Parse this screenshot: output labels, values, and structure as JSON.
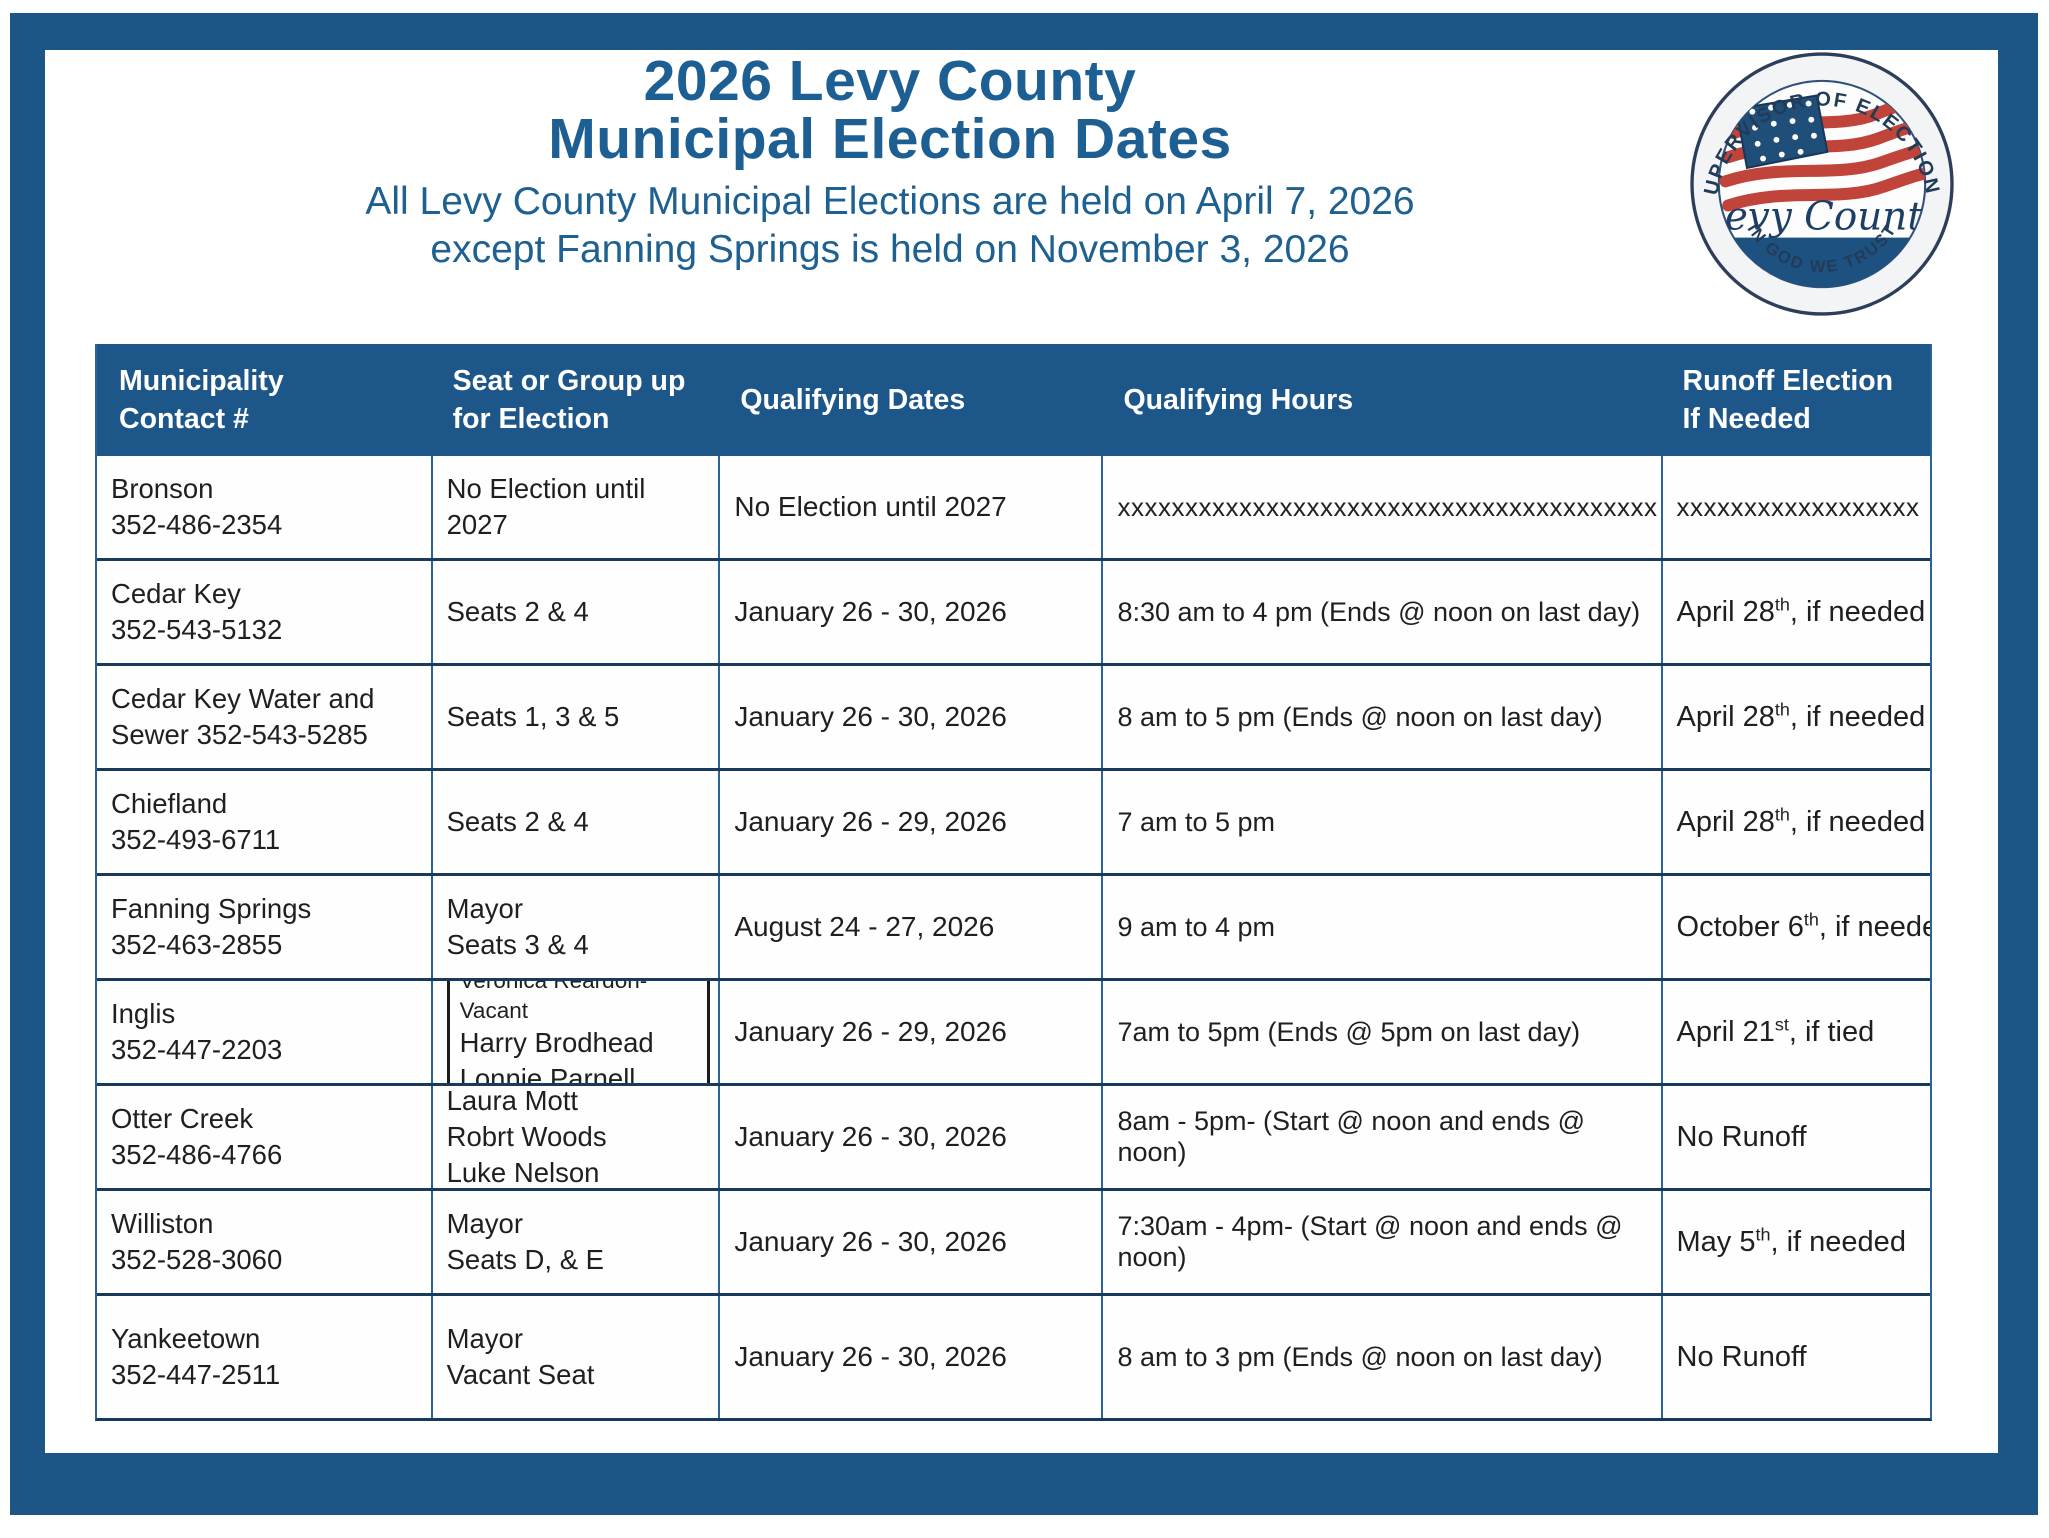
{
  "page": {
    "title_line1": "2026 Levy County",
    "title_line2": "Municipal Election Dates",
    "subtitle_line1": "All Levy County Municipal Elections are held on April 7, 2026",
    "subtitle_line2": "except Fanning Springs is held on November 3, 2026"
  },
  "seal": {
    "top_text": "SUPERVISOR OF ELECTIONS",
    "bottom_text": "IN GOD WE TRUST",
    "center_text": "Levy County",
    "colors": {
      "navy": "#1d4a74",
      "red": "#c0443a",
      "ring_text": "#223c58"
    }
  },
  "colors": {
    "frame_blue": "#1c5687",
    "header_blue": "#1d5689",
    "title_blue": "#1d5f93",
    "row_separator": "#1a3a5c",
    "cell_border": "#2a6496"
  },
  "table": {
    "headers": [
      {
        "lines": [
          "Municipality",
          "Contact #"
        ]
      },
      {
        "lines": [
          "Seat or Group up",
          "for Election"
        ]
      },
      {
        "lines": [
          "Qualifying Dates"
        ]
      },
      {
        "lines": [
          "Qualifying Hours"
        ]
      },
      {
        "lines": [
          "Runoff Election",
          "If Needed"
        ]
      }
    ],
    "rows": [
      {
        "municipality": [
          "Bronson",
          "352-486-2354"
        ],
        "seat": [
          "No Election until 2027"
        ],
        "dates": "No Election until 2027",
        "hours": "xxxxxxxxxxxxxxxxxxxxxxxxxxxxxxxxxxxxxxxx",
        "runoff": {
          "text": "xxxxxxxxxxxxxxxxxx"
        },
        "xstring": true
      },
      {
        "municipality": [
          "Cedar Key",
          "352-543-5132"
        ],
        "seat": [
          "Seats 2 & 4"
        ],
        "dates": "January 26 - 30, 2026",
        "hours": "8:30 am to 4 pm (Ends @ noon on last day)",
        "runoff": {
          "text": "April 28",
          "sup": "th",
          "tail": ", if needed"
        }
      },
      {
        "municipality": [
          "Cedar Key Water and",
          "Sewer 352-543-5285"
        ],
        "seat": [
          "Seats 1, 3 & 5"
        ],
        "dates": "January 26 - 30, 2026",
        "hours": "8 am to 5 pm (Ends @ noon on last day)",
        "runoff": {
          "text": "April 28",
          "sup": "th",
          "tail": ", if needed"
        }
      },
      {
        "municipality": [
          "Chiefland",
          "352-493-6711"
        ],
        "seat": [
          "Seats 2 & 4"
        ],
        "dates": "January 26 - 29, 2026",
        "hours": "7 am to 5 pm",
        "runoff": {
          "text": "April 28",
          "sup": "th",
          "tail": ", if needed"
        }
      },
      {
        "municipality": [
          "Fanning Springs",
          "352-463-2855"
        ],
        "seat": [
          "Mayor",
          "Seats 3 & 4"
        ],
        "dates": "August 24 - 27, 2026",
        "hours": "9 am to 4 pm",
        "runoff": {
          "text": "October 6",
          "sup": "th",
          "tail": ", if needed"
        }
      },
      {
        "municipality": [
          "Inglis",
          "352-447-2203"
        ],
        "seat": [
          "Veronica Reardon-Vacant",
          "Harry Brodhead",
          "Lonnie Parnell"
        ],
        "boxed": true,
        "small_first": true,
        "dates": "January 26 - 29, 2026",
        "hours": "7am to 5pm (Ends @ 5pm on last day)",
        "runoff": {
          "text": "April 21",
          "sup": "st",
          "tail": ", if tied"
        }
      },
      {
        "municipality": [
          "Otter Creek",
          "352-486-4766"
        ],
        "seat": [
          "Laura Mott",
          "Robrt Woods",
          "Luke Nelson"
        ],
        "dates": "January 26 - 30, 2026",
        "hours": "8am - 5pm- (Start @ noon and ends @ noon)",
        "runoff": {
          "text": "No Runoff"
        }
      },
      {
        "municipality": [
          "Williston",
          "352-528-3060"
        ],
        "seat": [
          "Mayor",
          "Seats D, & E"
        ],
        "dates": "January 26 - 30, 2026",
        "hours": "7:30am - 4pm- (Start @ noon and ends @ noon)",
        "runoff": {
          "text": "May 5",
          "sup": "th",
          "tail": ", if needed"
        }
      },
      {
        "municipality": [
          "Yankeetown",
          "352-447-2511"
        ],
        "seat": [
          "Mayor",
          "Vacant Seat"
        ],
        "dates": "January 26 - 30, 2026",
        "hours": "8 am to 3 pm  (Ends @ noon on last day)",
        "runoff": {
          "text": "No Runoff"
        }
      }
    ]
  }
}
